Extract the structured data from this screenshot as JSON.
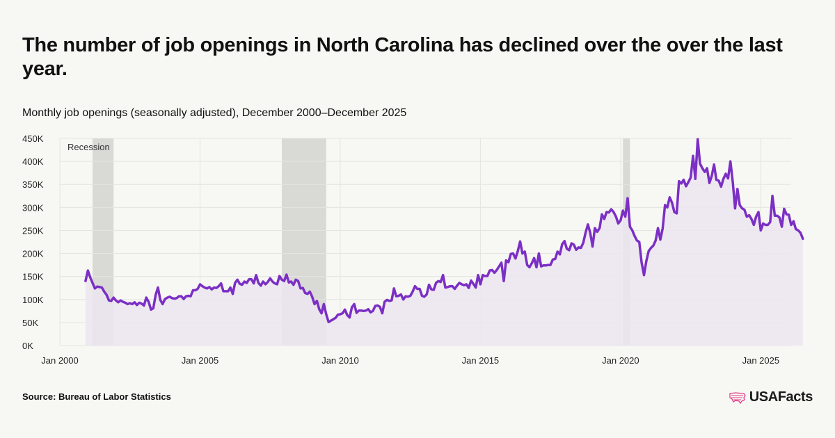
{
  "header": {
    "title": "The number of job openings in North Carolina has declined over the over the last year.",
    "subtitle": "Monthly job openings (seasonally adjusted), December 2000–December 2025"
  },
  "footer": {
    "source": "Source: Bureau of Labor Statistics",
    "brand": "USAFacts",
    "brand_icon": "us-map-icon"
  },
  "colors": {
    "line": "#7b2fc4",
    "area": "#ece6f0",
    "recession": "#d9d9d5",
    "grid": "#e4e4e0",
    "brand_icon": "#e0408a"
  },
  "chart_data": {
    "type": "area",
    "title": "",
    "xlabel": "",
    "ylabel": "",
    "ylim": [
      0,
      450000
    ],
    "xlim": [
      "2000-01",
      "2026-02"
    ],
    "x_ticks": [
      "2000-01",
      "2005-01",
      "2010-01",
      "2015-01",
      "2020-01",
      "2025-01"
    ],
    "x_tick_labels": [
      "Jan 2000",
      "Jan 2005",
      "Jan 2010",
      "Jan 2015",
      "Jan 2020",
      "Jan 2025"
    ],
    "y_ticks": [
      0,
      50000,
      100000,
      150000,
      200000,
      250000,
      300000,
      350000,
      400000,
      450000
    ],
    "y_tick_labels": [
      "0K",
      "50K",
      "100K",
      "150K",
      "200K",
      "250K",
      "300K",
      "350K",
      "400K",
      "450K"
    ],
    "grid": true,
    "recession_label": "Recession",
    "recessions": [
      {
        "start": "2001-03",
        "end": "2001-11"
      },
      {
        "start": "2007-12",
        "end": "2009-06"
      },
      {
        "start": "2020-02",
        "end": "2020-04"
      }
    ],
    "series": [
      {
        "x_start": "2000-12",
        "values": [
          140000,
          163000,
          148000,
          136000,
          124000,
          128000,
          127000,
          126000,
          117000,
          110000,
          98000,
          97000,
          104000,
          98000,
          94000,
          98000,
          95000,
          93000,
          90000,
          92000,
          90000,
          94000,
          88000,
          93000,
          91000,
          87000,
          104000,
          95000,
          78000,
          81000,
          110000,
          126000,
          99000,
          90000,
          101000,
          104000,
          106000,
          103000,
          102000,
          103000,
          107000,
          107000,
          101000,
          107000,
          108000,
          107000,
          120000,
          120000,
          123000,
          133000,
          129000,
          126000,
          124000,
          127000,
          122000,
          126000,
          125000,
          129000,
          135000,
          118000,
          118000,
          118000,
          126000,
          112000,
          136000,
          143000,
          134000,
          132000,
          139000,
          136000,
          144000,
          144000,
          135000,
          153000,
          136000,
          130000,
          139000,
          133000,
          138000,
          146000,
          139000,
          135000,
          133000,
          151000,
          143000,
          140000,
          154000,
          137000,
          139000,
          132000,
          143000,
          140000,
          124000,
          125000,
          114000,
          112000,
          117000,
          106000,
          90000,
          97000,
          79000,
          70000,
          90000,
          68000,
          51000,
          54000,
          57000,
          60000,
          67000,
          68000,
          70000,
          78000,
          66000,
          61000,
          83000,
          90000,
          71000,
          76000,
          76000,
          75000,
          76000,
          79000,
          72000,
          75000,
          86000,
          87000,
          84000,
          70000,
          95000,
          99000,
          97000,
          98000,
          124000,
          107000,
          108000,
          111000,
          100000,
          107000,
          106000,
          108000,
          117000,
          129000,
          123000,
          123000,
          108000,
          106000,
          111000,
          132000,
          122000,
          121000,
          136000,
          140000,
          138000,
          153000,
          126000,
          127000,
          129000,
          129000,
          123000,
          130000,
          136000,
          133000,
          131000,
          133000,
          125000,
          141000,
          134000,
          126000,
          153000,
          133000,
          153000,
          151000,
          151000,
          163000,
          164000,
          158000,
          164000,
          172000,
          180000,
          140000,
          185000,
          181000,
          199000,
          200000,
          189000,
          205000,
          226000,
          200000,
          204000,
          175000,
          170000,
          179000,
          190000,
          170000,
          200000,
          172000,
          174000,
          174000,
          175000,
          175000,
          187000,
          188000,
          204000,
          198000,
          220000,
          227000,
          210000,
          207000,
          222000,
          219000,
          208000,
          213000,
          212000,
          223000,
          245000,
          263000,
          245000,
          215000,
          255000,
          247000,
          255000,
          285000,
          275000,
          290000,
          289000,
          296000,
          290000,
          280000,
          265000,
          272000,
          293000,
          280000,
          320000,
          258000,
          250000,
          238000,
          228000,
          225000,
          180000,
          153000,
          183000,
          205000,
          212000,
          217000,
          228000,
          255000,
          230000,
          254000,
          305000,
          300000,
          322000,
          310000,
          290000,
          287000,
          357000,
          352000,
          360000,
          346000,
          355000,
          365000,
          412000,
          362000,
          448000,
          395000,
          385000,
          377000,
          385000,
          353000,
          368000,
          393000,
          360000,
          358000,
          345000,
          362000,
          373000,
          363000,
          400000,
          355000,
          298000,
          340000,
          305000,
          298000,
          295000,
          280000,
          283000,
          275000,
          262000,
          280000,
          290000,
          250000,
          265000,
          262000,
          262000,
          268000,
          325000,
          282000,
          282000,
          278000,
          258000,
          297000,
          285000,
          284000,
          262000,
          270000,
          253000,
          250000,
          245000,
          232000
        ]
      }
    ]
  }
}
